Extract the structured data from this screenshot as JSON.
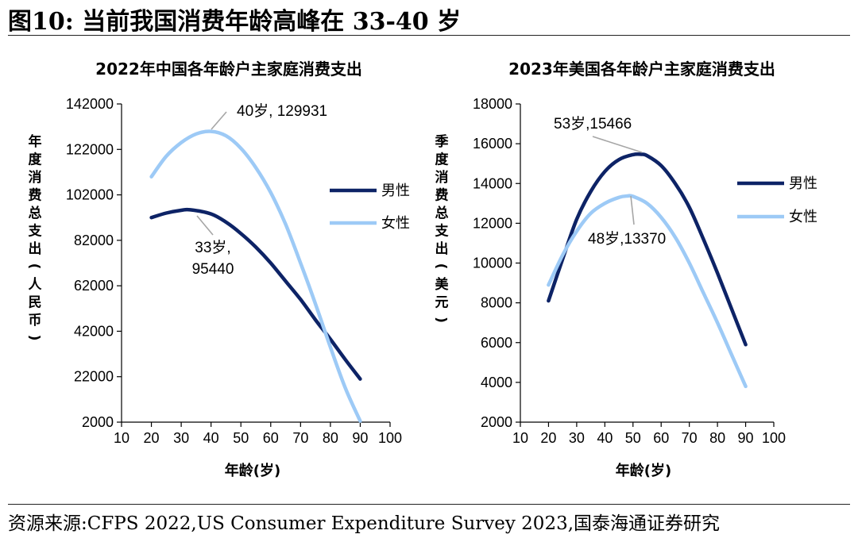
{
  "figure": {
    "title": "图10:  当前我国消费年龄高峰在 33-40 岁",
    "source": "资源来源:CFPS 2022,US Consumer Expenditure Survey 2023,国泰海通证券研究"
  },
  "colors": {
    "male": "#0d2366",
    "female": "#9dcaf6",
    "axis": "#000000",
    "annot": "#a6a6a6"
  },
  "chart_data": [
    {
      "type": "line",
      "title": "2022年中国各年龄户主家庭消费支出",
      "xlabel": "年龄(岁)",
      "ylabel": "年度消费总支出(人民币)",
      "xlim": [
        10,
        100
      ],
      "ylim": [
        2000,
        142000
      ],
      "xticks": [
        10,
        20,
        30,
        40,
        50,
        60,
        70,
        80,
        90,
        100
      ],
      "yticks": [
        2000,
        22000,
        42000,
        62000,
        82000,
        102000,
        122000,
        142000
      ],
      "legend_position": "right",
      "series": [
        {
          "name": "男性",
          "color": "male",
          "x": [
            20,
            25,
            30,
            33,
            40,
            45,
            50,
            55,
            60,
            65,
            70,
            75,
            80,
            85,
            90
          ],
          "y": [
            92000,
            94000,
            95200,
            95440,
            93600,
            90000,
            85000,
            79000,
            72000,
            64000,
            56000,
            47000,
            38500,
            29500,
            21000
          ]
        },
        {
          "name": "女性",
          "color": "female",
          "x": [
            20,
            25,
            30,
            35,
            40,
            45,
            50,
            55,
            60,
            65,
            70,
            75,
            80,
            85,
            90
          ],
          "y": [
            110000,
            119000,
            125000,
            128800,
            129931,
            128000,
            122500,
            114000,
            103000,
            89000,
            72000,
            54000,
            35000,
            17000,
            2500
          ]
        }
      ],
      "annotations": [
        {
          "text": "40岁, 129931",
          "x": 40,
          "y": 129931
        },
        {
          "text_lines": [
            "33岁,",
            "95440"
          ],
          "x": 33,
          "y": 95440
        }
      ]
    },
    {
      "type": "line",
      "title": "2023年美国各年龄户主家庭消费支出",
      "xlabel": "年龄(岁)",
      "ylabel": "季度消费总支出(美元)",
      "xlim": [
        10,
        100
      ],
      "ylim": [
        2000,
        18000
      ],
      "xticks": [
        10,
        20,
        30,
        40,
        50,
        60,
        70,
        80,
        90,
        100
      ],
      "yticks": [
        2000,
        4000,
        6000,
        8000,
        10000,
        12000,
        14000,
        16000,
        18000
      ],
      "legend_position": "right",
      "series": [
        {
          "name": "男性",
          "color": "male",
          "x": [
            20,
            25,
            30,
            35,
            40,
            45,
            50,
            53,
            55,
            60,
            65,
            70,
            75,
            80,
            85,
            90
          ],
          "y": [
            8100,
            10200,
            12200,
            13600,
            14600,
            15200,
            15450,
            15466,
            15400,
            14900,
            14000,
            12800,
            11200,
            9500,
            7700,
            5900
          ]
        },
        {
          "name": "女性",
          "color": "female",
          "x": [
            20,
            25,
            30,
            35,
            40,
            45,
            48,
            50,
            55,
            60,
            65,
            70,
            75,
            80,
            85,
            90
          ],
          "y": [
            8900,
            10400,
            11600,
            12500,
            13000,
            13300,
            13370,
            13350,
            13000,
            12300,
            11300,
            10000,
            8500,
            7000,
            5400,
            3800
          ]
        }
      ],
      "annotations": [
        {
          "text": "53岁,15466",
          "x": 53,
          "y": 15466
        },
        {
          "text": "48岁,13370",
          "x": 48,
          "y": 13370
        }
      ]
    }
  ]
}
